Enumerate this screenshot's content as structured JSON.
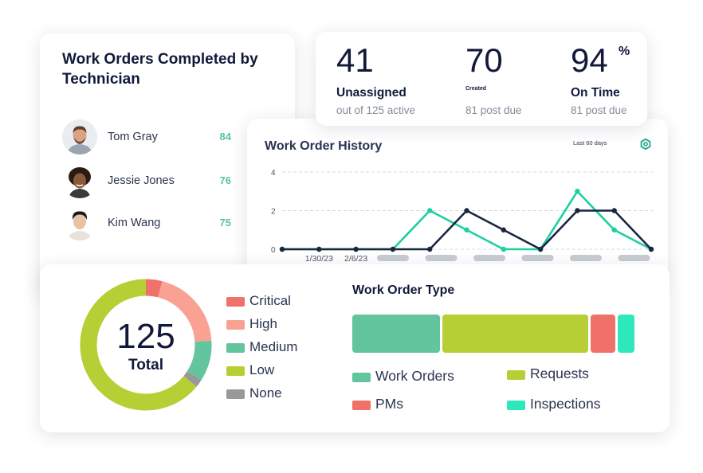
{
  "technicians": {
    "title": "Work Orders Completed by Technician",
    "items": [
      {
        "name": "Tom Gray",
        "count": "84"
      },
      {
        "name": "Jessie Jones",
        "count": "76"
      },
      {
        "name": "Kim Wang",
        "count": "75"
      }
    ]
  },
  "stats": {
    "unassigned": {
      "value": "41",
      "label": "Unassigned",
      "sub": "out of 125 active"
    },
    "created": {
      "value": "70",
      "label": "Created",
      "sub": "81 post due"
    },
    "on_time": {
      "value": "94",
      "unit": "%",
      "label": "On Time",
      "sub": "81 post due"
    }
  },
  "history": {
    "title": "Work Order History",
    "range_label": "Last 60 days",
    "settings_icon": "gear-icon"
  },
  "chart_data": [
    {
      "type": "line",
      "title": "Work Order History",
      "x_tick_labels": [
        "1/30/23",
        "2/6/23"
      ],
      "y_ticks": [
        0,
        2,
        4
      ],
      "ylim": [
        0,
        4
      ],
      "grid": true,
      "series": [
        {
          "color": "#1ecfa0",
          "values": [
            0,
            0,
            0,
            0,
            2,
            1,
            0,
            0,
            3,
            1,
            0
          ]
        },
        {
          "color": "#1a2540",
          "values": [
            0,
            0,
            0,
            0,
            0,
            2,
            1,
            0,
            2,
            2,
            0
          ]
        }
      ]
    },
    {
      "type": "pie",
      "center_value": "125",
      "center_label": "Total",
      "slices": [
        {
          "label": "Critical",
          "value": 4,
          "color": "#f0706a"
        },
        {
          "label": "High",
          "value": 20,
          "color": "#f9a192"
        },
        {
          "label": "Medium",
          "value": 10,
          "color": "#62c59d"
        },
        {
          "label": "None",
          "value": 2,
          "color": "#999999"
        },
        {
          "label": "Low",
          "value": 64,
          "color": "#b5cf35"
        }
      ]
    },
    {
      "type": "bar",
      "title": "Work Order Type",
      "stacked": true,
      "orientation": "horizontal",
      "segments": [
        {
          "label": "Work Orders",
          "value": 32,
          "color": "#62c59d"
        },
        {
          "label": "Requests",
          "value": 53,
          "color": "#b5cf35"
        },
        {
          "label": "PMs",
          "value": 9,
          "color": "#f0706a"
        },
        {
          "label": "Inspections",
          "value": 6,
          "color": "#2ee8bb"
        }
      ]
    }
  ]
}
